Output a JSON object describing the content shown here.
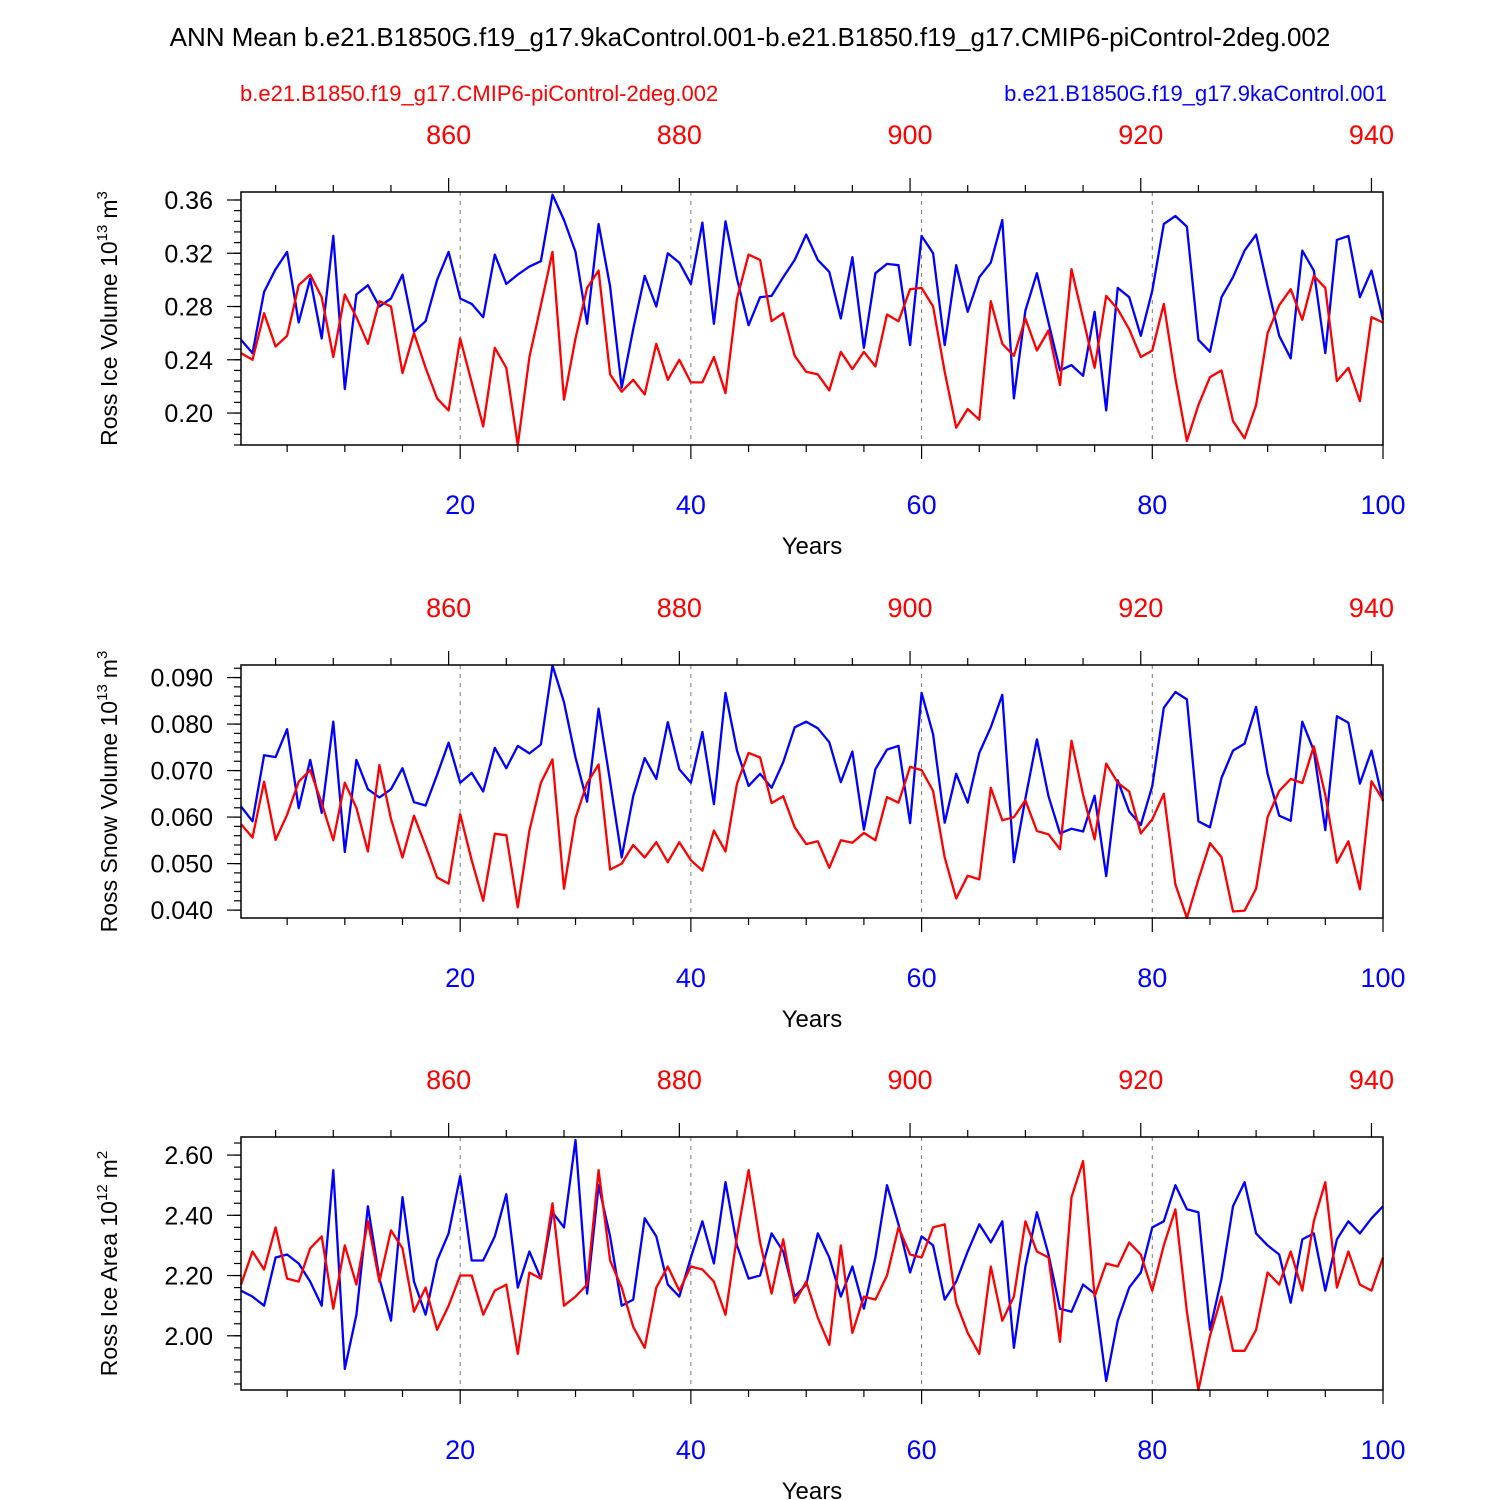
{
  "title": "ANN Mean b.e21.B1850G.f19_g17.9kaControl.001-b.e21.B1850.f19_g17.CMIP6-piControl-2deg.002",
  "legend": {
    "red_label": "b.e21.B1850.f19_g17.CMIP6-piControl-2deg.002",
    "blue_label": "b.e21.B1850G.f19_g17.9kaControl.001"
  },
  "colors": {
    "red": "#ff0000",
    "blue": "#0000ff",
    "text": "#000000"
  },
  "chart_data": [
    {
      "type": "line",
      "ylabel": "Ross Ice Volume",
      "yunit_base": "10",
      "yunit_exp": "13",
      "yunit_tail": "m",
      "yunit_tail_exp": "3",
      "xlabel": "Years",
      "xlim": [
        1,
        100
      ],
      "ylim": [
        0.176,
        0.366
      ],
      "yticks": [
        "0.20",
        "0.24",
        "0.28",
        "0.32",
        "0.36"
      ],
      "ytick_values": [
        0.2,
        0.24,
        0.28,
        0.32,
        0.36
      ],
      "bottom_xticks": [
        "20",
        "40",
        "60",
        "80",
        "100"
      ],
      "bottom_xtick_values": [
        20,
        40,
        60,
        80,
        100
      ],
      "top_xticks": [
        "860",
        "880",
        "900",
        "920",
        "940"
      ],
      "top_xtick_values": [
        860,
        880,
        900,
        920,
        940
      ],
      "top_axis_offset": 841,
      "series": [
        {
          "name": "b.e21.B1850G.f19_g17.9kaControl.001",
          "color": "blue",
          "values": [
            0.255,
            0.245,
            0.291,
            0.308,
            0.321,
            0.268,
            0.301,
            0.256,
            0.333,
            0.218,
            0.289,
            0.296,
            0.28,
            0.286,
            0.304,
            0.261,
            0.269,
            0.3,
            0.321,
            0.286,
            0.282,
            0.272,
            0.319,
            0.297,
            0.304,
            0.31,
            0.314,
            0.364,
            0.345,
            0.321,
            0.267,
            0.342,
            0.295,
            0.219,
            0.263,
            0.303,
            0.28,
            0.32,
            0.313,
            0.297,
            0.343,
            0.267,
            0.344,
            0.301,
            0.266,
            0.287,
            0.288,
            0.302,
            0.315,
            0.334,
            0.315,
            0.306,
            0.271,
            0.317,
            0.249,
            0.305,
            0.312,
            0.311,
            0.251,
            0.333,
            0.32,
            0.251,
            0.311,
            0.276,
            0.302,
            0.313,
            0.345,
            0.211,
            0.277,
            0.305,
            0.268,
            0.232,
            0.236,
            0.228,
            0.276,
            0.202,
            0.294,
            0.287,
            0.258,
            0.292,
            0.342,
            0.348,
            0.34,
            0.255,
            0.246,
            0.287,
            0.302,
            0.322,
            0.334,
            0.295,
            0.258,
            0.241,
            0.322,
            0.307,
            0.245,
            0.33,
            0.333,
            0.287,
            0.307,
            0.27
          ]
        },
        {
          "name": "b.e21.B1850.f19_g17.CMIP6-piControl-2deg.002",
          "color": "red",
          "values": [
            0.245,
            0.24,
            0.275,
            0.25,
            0.258,
            0.296,
            0.304,
            0.287,
            0.242,
            0.289,
            0.272,
            0.252,
            0.284,
            0.28,
            0.23,
            0.26,
            0.234,
            0.211,
            0.202,
            0.256,
            0.223,
            0.19,
            0.249,
            0.234,
            0.176,
            0.242,
            0.281,
            0.321,
            0.21,
            0.256,
            0.294,
            0.307,
            0.229,
            0.216,
            0.225,
            0.214,
            0.252,
            0.225,
            0.24,
            0.223,
            0.223,
            0.242,
            0.215,
            0.286,
            0.319,
            0.315,
            0.269,
            0.275,
            0.243,
            0.231,
            0.229,
            0.217,
            0.246,
            0.233,
            0.246,
            0.235,
            0.274,
            0.269,
            0.293,
            0.294,
            0.28,
            0.231,
            0.189,
            0.203,
            0.195,
            0.284,
            0.252,
            0.243,
            0.271,
            0.247,
            0.262,
            0.221,
            0.308,
            0.271,
            0.234,
            0.288,
            0.278,
            0.263,
            0.242,
            0.247,
            0.282,
            0.226,
            0.179,
            0.206,
            0.227,
            0.232,
            0.194,
            0.181,
            0.206,
            0.26,
            0.281,
            0.293,
            0.27,
            0.303,
            0.294,
            0.224,
            0.234,
            0.209,
            0.272,
            0.268
          ]
        }
      ]
    },
    {
      "type": "line",
      "ylabel": "Ross Snow Volume",
      "yunit_base": "10",
      "yunit_exp": "13",
      "yunit_tail": "m",
      "yunit_tail_exp": "3",
      "xlabel": "Years",
      "xlim": [
        1,
        100
      ],
      "ylim": [
        0.0383,
        0.0927
      ],
      "yticks": [
        "0.040",
        "0.050",
        "0.060",
        "0.070",
        "0.080",
        "0.090"
      ],
      "ytick_values": [
        0.04,
        0.05,
        0.06,
        0.07,
        0.08,
        0.09
      ],
      "bottom_xticks": [
        "20",
        "40",
        "60",
        "80",
        "100"
      ],
      "bottom_xtick_values": [
        20,
        40,
        60,
        80,
        100
      ],
      "top_xticks": [
        "860",
        "880",
        "900",
        "920",
        "940"
      ],
      "top_xtick_values": [
        860,
        880,
        900,
        920,
        940
      ],
      "top_axis_offset": 841,
      "series": [
        {
          "name": "b.e21.B1850G.f19_g17.9kaControl.001",
          "color": "blue",
          "values": [
            0.0623,
            0.0591,
            0.0733,
            0.0729,
            0.0789,
            0.0619,
            0.0723,
            0.0609,
            0.0805,
            0.0525,
            0.0723,
            0.066,
            0.0642,
            0.066,
            0.0705,
            0.0632,
            0.0625,
            0.0691,
            0.076,
            0.0674,
            0.0695,
            0.0655,
            0.0749,
            0.0705,
            0.0753,
            0.0737,
            0.0756,
            0.0926,
            0.0847,
            0.0728,
            0.0633,
            0.0833,
            0.0677,
            0.0513,
            0.0645,
            0.0727,
            0.0682,
            0.0804,
            0.0703,
            0.0674,
            0.0783,
            0.0628,
            0.0867,
            0.0743,
            0.0667,
            0.0693,
            0.0663,
            0.0718,
            0.0793,
            0.0805,
            0.0791,
            0.0761,
            0.0675,
            0.0741,
            0.0573,
            0.0703,
            0.0745,
            0.0753,
            0.0587,
            0.0867,
            0.0778,
            0.0588,
            0.0693,
            0.0631,
            0.0738,
            0.0793,
            0.0863,
            0.0503,
            0.064,
            0.0767,
            0.0645,
            0.0565,
            0.0575,
            0.0569,
            0.0646,
            0.0473,
            0.0679,
            0.0612,
            0.0583,
            0.0667,
            0.0835,
            0.0869,
            0.0853,
            0.0591,
            0.0578,
            0.0684,
            0.0743,
            0.0758,
            0.0837,
            0.0693,
            0.0603,
            0.0592,
            0.0805,
            0.0743,
            0.0572,
            0.0817,
            0.0803,
            0.0672,
            0.0743,
            0.0634
          ]
        },
        {
          "name": "b.e21.B1850.f19_g17.CMIP6-piControl-2deg.002",
          "color": "red",
          "values": [
            0.0585,
            0.0556,
            0.0676,
            0.0551,
            0.0605,
            0.0676,
            0.0701,
            0.063,
            0.055,
            0.0674,
            0.062,
            0.0526,
            0.0712,
            0.0596,
            0.0513,
            0.0603,
            0.0538,
            0.047,
            0.0457,
            0.0606,
            0.0507,
            0.042,
            0.0564,
            0.0561,
            0.0406,
            0.0571,
            0.0674,
            0.0724,
            0.0446,
            0.0598,
            0.0673,
            0.0713,
            0.0487,
            0.05,
            0.054,
            0.0513,
            0.0546,
            0.0503,
            0.0546,
            0.0507,
            0.0485,
            0.0571,
            0.0526,
            0.0672,
            0.0738,
            0.0728,
            0.063,
            0.0645,
            0.0578,
            0.0542,
            0.0548,
            0.0491,
            0.055,
            0.0545,
            0.0566,
            0.055,
            0.0643,
            0.0631,
            0.0708,
            0.0701,
            0.0656,
            0.0513,
            0.0425,
            0.0474,
            0.0466,
            0.0663,
            0.0593,
            0.06,
            0.0636,
            0.057,
            0.0563,
            0.0531,
            0.0764,
            0.0648,
            0.0552,
            0.0715,
            0.0674,
            0.0655,
            0.0565,
            0.0595,
            0.065,
            0.0455,
            0.0383,
            0.0466,
            0.0544,
            0.0514,
            0.0397,
            0.0399,
            0.0446,
            0.06,
            0.0656,
            0.0682,
            0.0673,
            0.0752,
            0.0648,
            0.0502,
            0.0548,
            0.0445,
            0.0677,
            0.0637
          ]
        }
      ]
    },
    {
      "type": "line",
      "ylabel": "Ross Ice Area",
      "yunit_base": "10",
      "yunit_exp": "12",
      "yunit_tail": "m",
      "yunit_tail_exp": "2",
      "xlabel": "Years",
      "xlim": [
        1,
        100
      ],
      "ylim": [
        1.82,
        2.66
      ],
      "yticks": [
        "2.00",
        "2.20",
        "2.40",
        "2.60"
      ],
      "ytick_values": [
        2.0,
        2.2,
        2.4,
        2.6
      ],
      "bottom_xticks": [
        "20",
        "40",
        "60",
        "80",
        "100"
      ],
      "bottom_xtick_values": [
        20,
        40,
        60,
        80,
        100
      ],
      "top_xticks": [
        "860",
        "880",
        "900",
        "920",
        "940"
      ],
      "top_xtick_values": [
        860,
        880,
        900,
        920,
        940
      ],
      "top_axis_offset": 841,
      "series": [
        {
          "name": "b.e21.B1850G.f19_g17.9kaControl.001",
          "color": "blue",
          "values": [
            2.15,
            2.13,
            2.1,
            2.26,
            2.27,
            2.24,
            2.18,
            2.1,
            2.55,
            1.89,
            2.07,
            2.43,
            2.19,
            2.05,
            2.46,
            2.18,
            2.07,
            2.25,
            2.34,
            2.53,
            2.25,
            2.25,
            2.33,
            2.47,
            2.16,
            2.28,
            2.19,
            2.41,
            2.36,
            2.65,
            2.14,
            2.5,
            2.33,
            2.1,
            2.12,
            2.39,
            2.33,
            2.17,
            2.13,
            2.26,
            2.38,
            2.24,
            2.51,
            2.3,
            2.19,
            2.2,
            2.34,
            2.28,
            2.13,
            2.17,
            2.34,
            2.26,
            2.13,
            2.23,
            2.09,
            2.26,
            2.5,
            2.37,
            2.21,
            2.33,
            2.3,
            2.12,
            2.18,
            2.28,
            2.37,
            2.31,
            2.38,
            1.96,
            2.23,
            2.41,
            2.27,
            2.09,
            2.08,
            2.17,
            2.14,
            1.85,
            2.05,
            2.16,
            2.21,
            2.36,
            2.38,
            2.5,
            2.42,
            2.41,
            2.02,
            2.19,
            2.43,
            2.51,
            2.34,
            2.3,
            2.27,
            2.11,
            2.32,
            2.34,
            2.15,
            2.32,
            2.38,
            2.34,
            2.39,
            2.43
          ]
        },
        {
          "name": "b.e21.B1850.f19_g17.CMIP6-piControl-2deg.002",
          "color": "red",
          "values": [
            2.17,
            2.28,
            2.22,
            2.36,
            2.19,
            2.18,
            2.29,
            2.33,
            2.09,
            2.3,
            2.17,
            2.38,
            2.18,
            2.35,
            2.29,
            2.08,
            2.16,
            2.02,
            2.1,
            2.2,
            2.2,
            2.07,
            2.15,
            2.17,
            1.94,
            2.21,
            2.19,
            2.44,
            2.1,
            2.13,
            2.17,
            2.55,
            2.25,
            2.16,
            2.03,
            1.96,
            2.16,
            2.23,
            2.15,
            2.23,
            2.22,
            2.18,
            2.07,
            2.33,
            2.55,
            2.31,
            2.14,
            2.32,
            2.11,
            2.18,
            2.06,
            1.97,
            2.3,
            2.01,
            2.13,
            2.12,
            2.2,
            2.36,
            2.27,
            2.26,
            2.36,
            2.37,
            2.11,
            2.01,
            1.94,
            2.23,
            2.05,
            2.13,
            2.38,
            2.28,
            2.26,
            1.98,
            2.46,
            2.58,
            2.13,
            2.24,
            2.23,
            2.31,
            2.27,
            2.15,
            2.3,
            2.42,
            2.08,
            1.82,
            2.0,
            2.13,
            1.95,
            1.95,
            2.02,
            2.21,
            2.17,
            2.28,
            2.15,
            2.38,
            2.51,
            2.16,
            2.28,
            2.17,
            2.15,
            2.26
          ]
        }
      ]
    }
  ]
}
